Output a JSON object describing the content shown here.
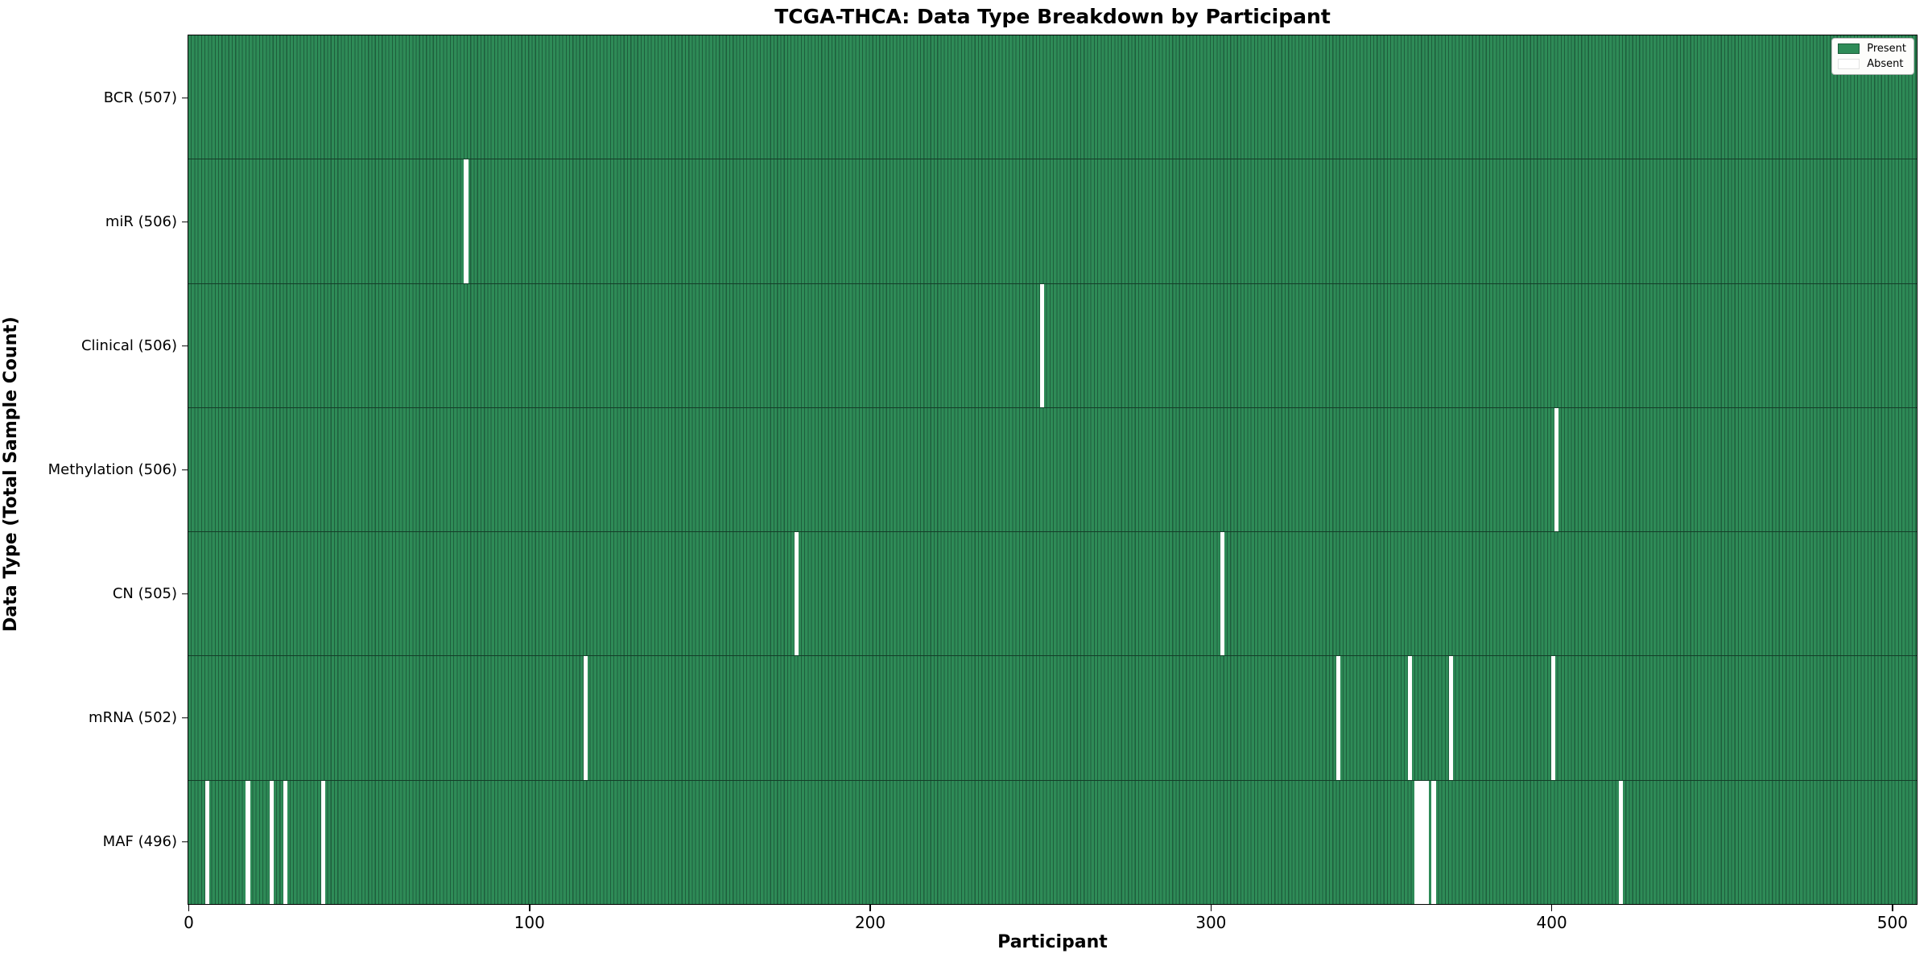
{
  "figure": {
    "title": "TCGA-THCA: Data Type Breakdown by Participant",
    "xlabel": "Participant",
    "ylabel": "Data Type (Total Sample Count)"
  },
  "colors": {
    "present": "#2e8b57",
    "absent": "#ffffff",
    "cell_edge": "#1e5e3c",
    "row_separator": "#143d28",
    "legend_border": "#b8b8b8",
    "legend_bg": "#fdfdfb"
  },
  "chart_data": {
    "type": "heatmap",
    "title": "TCGA-THCA: Data Type Breakdown by Participant",
    "xlabel": "Participant",
    "ylabel": "Data Type (Total Sample Count)",
    "n_participants": 507,
    "x_ticks": [
      0,
      100,
      200,
      300,
      400,
      500
    ],
    "legend_position": "upper right",
    "legend": [
      {
        "label": "Present",
        "color": "#2e8b57",
        "edge": "#1e5e3c"
      },
      {
        "label": "Absent",
        "color": "#ffffff",
        "edge": "#e2e2e2"
      }
    ],
    "rows": [
      {
        "label": "BCR (507)",
        "name": "BCR",
        "present_count": 507,
        "absent_participants": []
      },
      {
        "label": "miR (506)",
        "name": "miR",
        "present_count": 506,
        "absent_participants": [
          81
        ]
      },
      {
        "label": "Clinical (506)",
        "name": "Clinical",
        "present_count": 506,
        "absent_participants": [
          250
        ]
      },
      {
        "label": "Methylation (506)",
        "name": "Methylation",
        "present_count": 506,
        "absent_participants": [
          401
        ]
      },
      {
        "label": "CN (505)",
        "name": "CN",
        "present_count": 505,
        "absent_participants": [
          178,
          303
        ]
      },
      {
        "label": "mRNA (502)",
        "name": "mRNA",
        "present_count": 502,
        "absent_participants": [
          116,
          337,
          358,
          370,
          400
        ]
      },
      {
        "label": "MAF (496)",
        "name": "MAF",
        "present_count": 496,
        "absent_participants": [
          5,
          17,
          24,
          28,
          39,
          360,
          361,
          362,
          363,
          365,
          420
        ]
      }
    ]
  }
}
